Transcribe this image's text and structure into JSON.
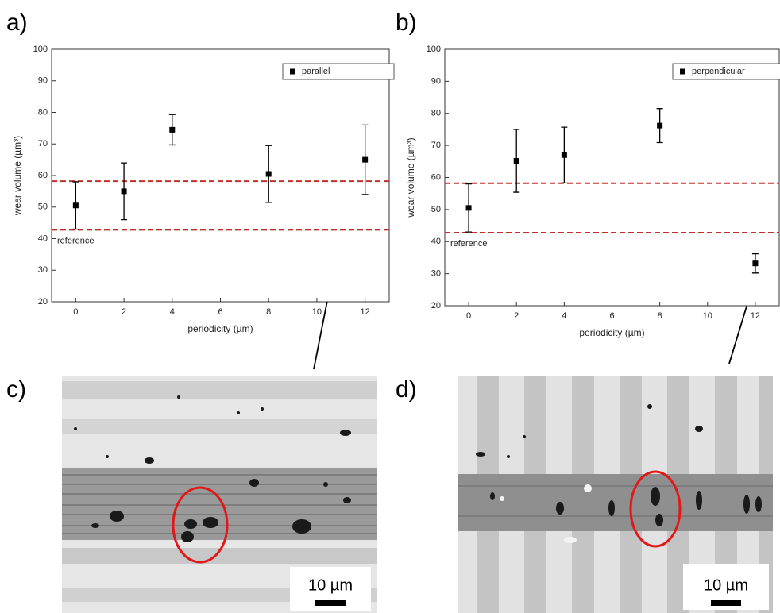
{
  "panel_labels": [
    "a)",
    "b)",
    "c)",
    "d)"
  ],
  "scale_bars": [
    "10 µm",
    "10 µm"
  ],
  "chart_data": [
    {
      "type": "scatter",
      "x_label": "periodicity (µm)",
      "y_label": "wear volume (µm³)",
      "x": [
        0,
        2,
        4,
        8,
        12
      ],
      "series": [
        {
          "name": "parallel",
          "color": "#000000",
          "values": [
            50.5,
            55,
            74.5,
            60.5,
            65
          ],
          "errors": [
            7.5,
            9,
            4.8,
            9,
            11
          ]
        }
      ],
      "xlim": [
        -1,
        13
      ],
      "xticks": [
        0,
        2,
        4,
        6,
        8,
        10,
        12
      ],
      "ylim": [
        20,
        100
      ],
      "yticks": [
        20,
        30,
        40,
        50,
        60,
        70,
        80,
        90,
        100
      ],
      "reference_lines": {
        "values": [
          42.8,
          58.2
        ],
        "color": "#c0302a",
        "label": "reference"
      },
      "legend": "upper right"
    },
    {
      "type": "scatter",
      "x_label": "periodicity (µm)",
      "y_label": "wear volume (µm³)",
      "x": [
        0,
        2,
        4,
        8,
        12
      ],
      "series": [
        {
          "name": "perpendicular",
          "color": "#000000",
          "values": [
            50.5,
            65.2,
            67,
            76.2,
            33.2
          ],
          "errors": [
            7.5,
            9.8,
            8.7,
            5.3,
            3
          ]
        }
      ],
      "xlim": [
        -1,
        13
      ],
      "xticks": [
        0,
        2,
        4,
        6,
        8,
        10,
        12
      ],
      "ylim": [
        20,
        100
      ],
      "yticks": [
        20,
        30,
        40,
        50,
        60,
        70,
        80,
        90,
        100
      ],
      "reference_lines": {
        "values": [
          42.8,
          58.2
        ],
        "color": "#c0302a",
        "label": "reference"
      },
      "legend": "upper right"
    }
  ]
}
